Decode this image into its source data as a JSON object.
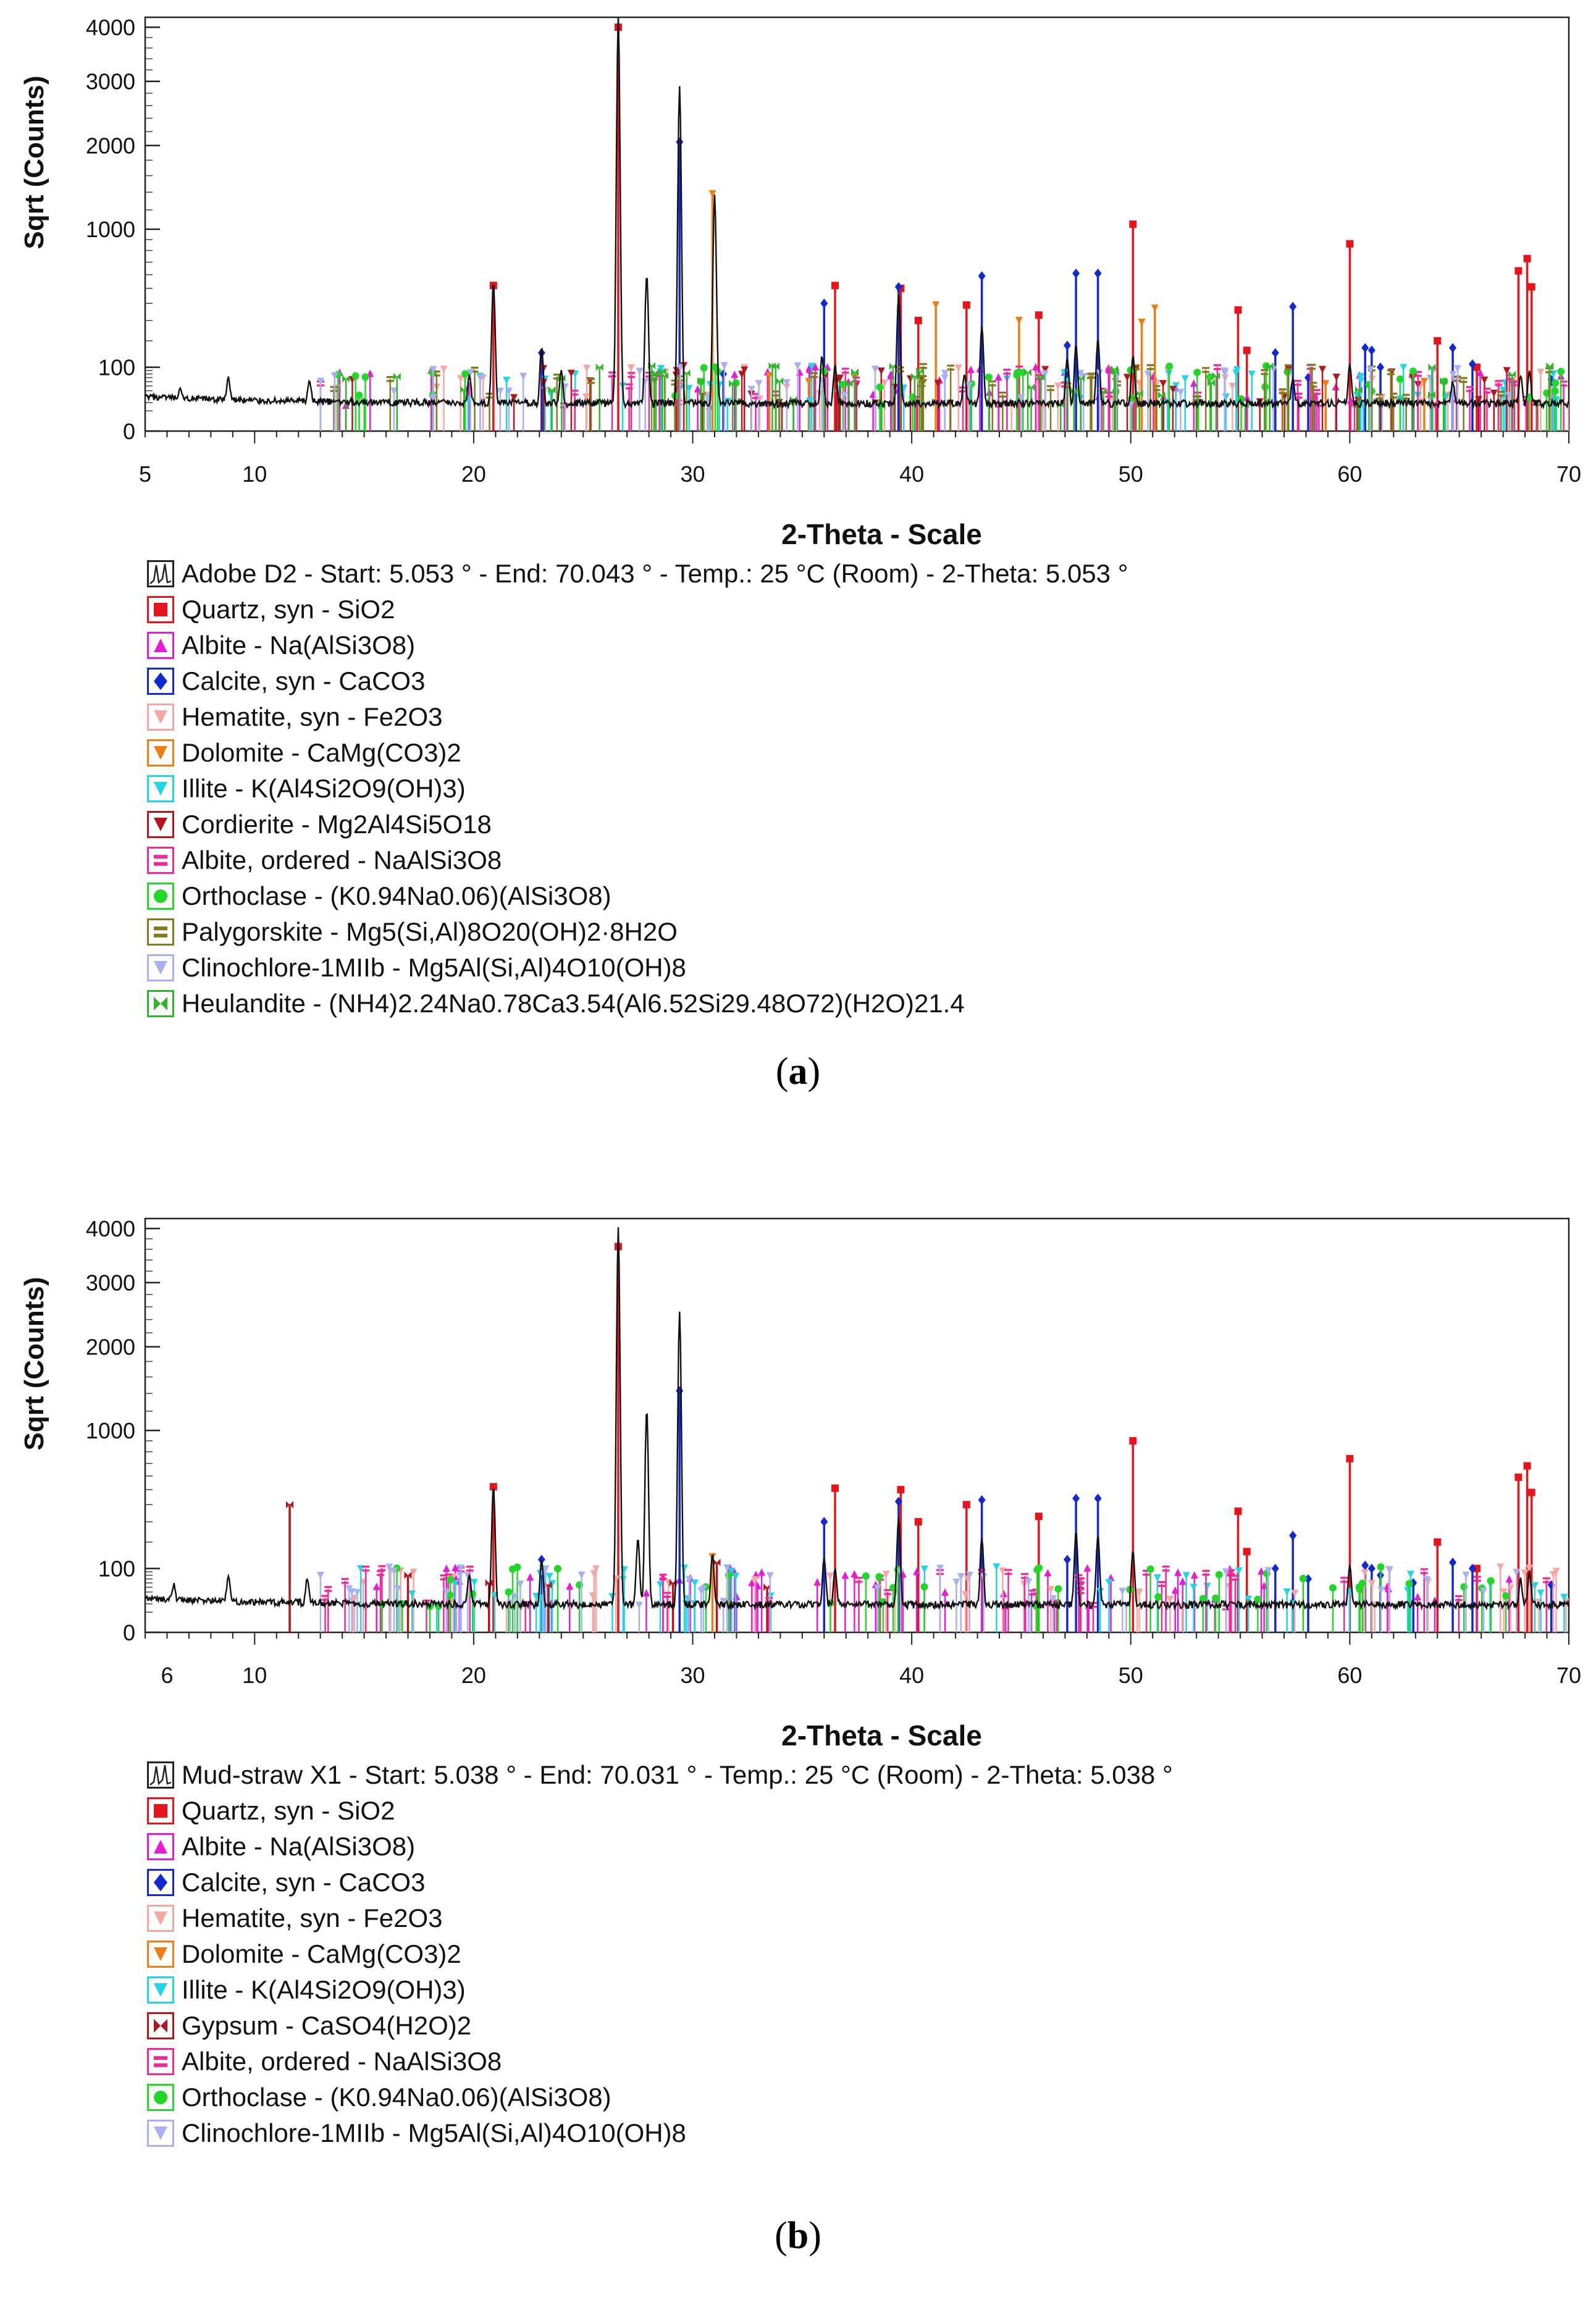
{
  "chart_data": [
    {
      "id": "a",
      "type": "line",
      "caption": "a",
      "xlabel": "2-Theta - Scale",
      "ylabel": "Sqrt (Counts)",
      "xlim": [
        5,
        70
      ],
      "x_ticks": [
        5,
        10,
        20,
        30,
        40,
        50,
        60,
        70
      ],
      "ylim": [
        0,
        4200
      ],
      "y_ticks": [
        0,
        100,
        1000,
        2000,
        3000,
        4000
      ],
      "y_scale": "sqrt",
      "pattern_name": "Adobe D2 - Start: 5.053 ° - End: 70.043 ° - Temp.: 25 °C (Room) - 2-Theta: 5.053 °",
      "peaks": [
        {
          "x": 6.6,
          "y": 14
        },
        {
          "x": 8.8,
          "y": 48
        },
        {
          "x": 12.5,
          "y": 42
        },
        {
          "x": 19.8,
          "y": 55
        },
        {
          "x": 20.9,
          "y": 520
        },
        {
          "x": 23.1,
          "y": 150
        },
        {
          "x": 24.0,
          "y": 70
        },
        {
          "x": 26.6,
          "y": 4200
        },
        {
          "x": 27.9,
          "y": 580
        },
        {
          "x": 29.4,
          "y": 2900
        },
        {
          "x": 31.0,
          "y": 1350
        },
        {
          "x": 35.9,
          "y": 120
        },
        {
          "x": 36.5,
          "y": 90
        },
        {
          "x": 39.4,
          "y": 430
        },
        {
          "x": 42.4,
          "y": 60
        },
        {
          "x": 43.2,
          "y": 250
        },
        {
          "x": 47.1,
          "y": 110
        },
        {
          "x": 47.5,
          "y": 160
        },
        {
          "x": 48.5,
          "y": 190
        },
        {
          "x": 50.1,
          "y": 120
        },
        {
          "x": 57.4,
          "y": 50
        },
        {
          "x": 60.0,
          "y": 90
        },
        {
          "x": 64.7,
          "y": 40
        },
        {
          "x": 67.8,
          "y": 55
        },
        {
          "x": 68.2,
          "y": 70
        }
      ],
      "phases": [
        {
          "name": "Quartz, syn - SiO2",
          "color": "#e8141c",
          "symbol": "square",
          "peaks": [
            {
              "x": 20.9,
              "y": 520
            },
            {
              "x": 26.6,
              "y": 4000
            },
            {
              "x": 36.5,
              "y": 520
            },
            {
              "x": 39.5,
              "y": 500
            },
            {
              "x": 40.3,
              "y": 300
            },
            {
              "x": 42.5,
              "y": 390
            },
            {
              "x": 45.8,
              "y": 330
            },
            {
              "x": 50.1,
              "y": 1050
            },
            {
              "x": 54.9,
              "y": 360
            },
            {
              "x": 55.3,
              "y": 160
            },
            {
              "x": 60.0,
              "y": 860
            },
            {
              "x": 64.0,
              "y": 200
            },
            {
              "x": 65.8,
              "y": 100
            },
            {
              "x": 67.7,
              "y": 630
            },
            {
              "x": 68.1,
              "y": 730
            },
            {
              "x": 68.3,
              "y": 510
            }
          ]
        },
        {
          "name": "Albite - Na(AlSi3O8)",
          "color": "#e61bd4",
          "symbol": "triangle-up",
          "peaks": []
        },
        {
          "name": "Calcite, syn - CaCO3",
          "color": "#1229d0",
          "symbol": "diamond",
          "peaks": [
            {
              "x": 23.1,
              "y": 150
            },
            {
              "x": 29.4,
              "y": 2050
            },
            {
              "x": 31.4,
              "y": 80
            },
            {
              "x": 36.0,
              "y": 400
            },
            {
              "x": 39.4,
              "y": 510
            },
            {
              "x": 43.2,
              "y": 590
            },
            {
              "x": 47.1,
              "y": 180
            },
            {
              "x": 47.5,
              "y": 610
            },
            {
              "x": 48.5,
              "y": 610
            },
            {
              "x": 56.6,
              "y": 150
            },
            {
              "x": 57.4,
              "y": 380
            },
            {
              "x": 58.1,
              "y": 70
            },
            {
              "x": 60.7,
              "y": 170
            },
            {
              "x": 61.0,
              "y": 160
            },
            {
              "x": 61.4,
              "y": 100
            },
            {
              "x": 62.9,
              "y": 80
            },
            {
              "x": 64.7,
              "y": 170
            },
            {
              "x": 65.6,
              "y": 110
            },
            {
              "x": 69.2,
              "y": 65
            }
          ]
        },
        {
          "name": "Hematite, syn - Fe2O3",
          "color": "#f7a7a3",
          "symbol": "triangle-down",
          "peaks": []
        },
        {
          "name": "Dolomite - CaMg(CO3)2",
          "color": "#f07d12",
          "symbol": "triangle-down",
          "peaks": [
            {
              "x": 30.9,
              "y": 1380
            },
            {
              "x": 33.5,
              "y": 75
            },
            {
              "x": 35.3,
              "y": 60
            },
            {
              "x": 37.4,
              "y": 70
            },
            {
              "x": 41.1,
              "y": 390
            },
            {
              "x": 44.9,
              "y": 300
            },
            {
              "x": 49.3,
              "y": 60
            },
            {
              "x": 50.5,
              "y": 290
            },
            {
              "x": 51.1,
              "y": 370
            },
            {
              "x": 58.9,
              "y": 55
            },
            {
              "x": 63.4,
              "y": 60
            },
            {
              "x": 67.4,
              "y": 60
            }
          ]
        },
        {
          "name": "Illite - K(Al4Si2O9(OH)3)",
          "color": "#20d5e6",
          "symbol": "triangle-down",
          "peaks": []
        },
        {
          "name": "Cordierite - Mg2Al4Si5O18",
          "color": "#b5161c",
          "symbol": "triangle-down",
          "peaks": []
        },
        {
          "name": "Albite, ordered - NaAlSi3O8",
          "color": "#f0289a",
          "symbol": "equals",
          "peaks": []
        },
        {
          "name": "Orthoclase - (K0.94Na0.06)(AlSi3O8)",
          "color": "#22d62a",
          "symbol": "circle",
          "peaks": []
        },
        {
          "name": "Palygorskite - Mg5(Si,Al)8O20(OH)2·8H2O",
          "color": "#827a1c",
          "symbol": "equals",
          "peaks": []
        },
        {
          "name": "Clinochlore-1MIIb - Mg5Al(Si,Al)4O10(OH)8",
          "color": "#a9b0f2",
          "symbol": "triangle-down",
          "peaks": []
        },
        {
          "name": "Heulandite - (NH4)2.24Na0.78Ca3.54(Al6.52Si29.48O72)(H2O)21.4",
          "color": "#2fb52a",
          "symbol": "bowtie",
          "peaks": []
        }
      ]
    },
    {
      "id": "b",
      "type": "line",
      "caption": "b",
      "xlabel": "2-Theta - Scale",
      "ylabel": "Sqrt (Counts)",
      "xlim": [
        5,
        70
      ],
      "x_ticks": [
        6,
        10,
        20,
        30,
        40,
        50,
        60,
        70
      ],
      "ylim": [
        0,
        4200
      ],
      "y_ticks": [
        0,
        100,
        1000,
        2000,
        3000,
        4000
      ],
      "y_scale": "sqrt",
      "pattern_name": "Mud-straw X1 - Start: 5.038 ° - End: 70.031 ° - Temp.: 25 °C (Room) - 2-Theta: 5.038 °",
      "peaks": [
        {
          "x": 6.3,
          "y": 30
        },
        {
          "x": 8.8,
          "y": 55
        },
        {
          "x": 12.4,
          "y": 48
        },
        {
          "x": 19.8,
          "y": 60
        },
        {
          "x": 20.9,
          "y": 500
        },
        {
          "x": 23.1,
          "y": 110
        },
        {
          "x": 26.6,
          "y": 4000
        },
        {
          "x": 27.5,
          "y": 200
        },
        {
          "x": 27.9,
          "y": 1200
        },
        {
          "x": 29.4,
          "y": 2500
        },
        {
          "x": 30.9,
          "y": 130
        },
        {
          "x": 36.0,
          "y": 120
        },
        {
          "x": 36.5,
          "y": 80
        },
        {
          "x": 39.4,
          "y": 300
        },
        {
          "x": 43.2,
          "y": 200
        },
        {
          "x": 47.5,
          "y": 230
        },
        {
          "x": 48.5,
          "y": 210
        },
        {
          "x": 50.1,
          "y": 140
        },
        {
          "x": 60.0,
          "y": 90
        },
        {
          "x": 67.8,
          "y": 50
        },
        {
          "x": 68.2,
          "y": 70
        }
      ],
      "phases": [
        {
          "name": "Quartz, syn - SiO2",
          "color": "#e8141c",
          "symbol": "square",
          "peaks": [
            {
              "x": 20.9,
              "y": 520
            },
            {
              "x": 26.6,
              "y": 3650
            },
            {
              "x": 36.5,
              "y": 510
            },
            {
              "x": 39.5,
              "y": 500
            },
            {
              "x": 40.3,
              "y": 300
            },
            {
              "x": 42.5,
              "y": 400
            },
            {
              "x": 45.8,
              "y": 330
            },
            {
              "x": 50.1,
              "y": 900
            },
            {
              "x": 54.9,
              "y": 360
            },
            {
              "x": 55.3,
              "y": 160
            },
            {
              "x": 60.0,
              "y": 740
            },
            {
              "x": 64.0,
              "y": 200
            },
            {
              "x": 65.8,
              "y": 100
            },
            {
              "x": 67.7,
              "y": 590
            },
            {
              "x": 68.1,
              "y": 680
            },
            {
              "x": 68.3,
              "y": 480
            }
          ]
        },
        {
          "name": "Albite - Na(AlSi3O8)",
          "color": "#e61bd4",
          "symbol": "triangle-up",
          "peaks": []
        },
        {
          "name": "Calcite, syn - CaCO3",
          "color": "#1229d0",
          "symbol": "diamond",
          "peaks": [
            {
              "x": 23.1,
              "y": 130
            },
            {
              "x": 29.4,
              "y": 1430
            },
            {
              "x": 36.0,
              "y": 300
            },
            {
              "x": 39.4,
              "y": 420
            },
            {
              "x": 43.2,
              "y": 430
            },
            {
              "x": 47.1,
              "y": 130
            },
            {
              "x": 47.5,
              "y": 440
            },
            {
              "x": 48.5,
              "y": 440
            },
            {
              "x": 56.6,
              "y": 100
            },
            {
              "x": 57.4,
              "y": 230
            },
            {
              "x": 58.1,
              "y": 70
            },
            {
              "x": 60.7,
              "y": 110
            },
            {
              "x": 61.0,
              "y": 100
            },
            {
              "x": 61.4,
              "y": 80
            },
            {
              "x": 62.9,
              "y": 60
            },
            {
              "x": 64.7,
              "y": 120
            },
            {
              "x": 65.6,
              "y": 100
            },
            {
              "x": 69.2,
              "y": 55
            }
          ]
        },
        {
          "name": "Hematite, syn - Fe2O3",
          "color": "#f7a7a3",
          "symbol": "triangle-down",
          "peaks": []
        },
        {
          "name": "Dolomite - CaMg(CO3)2",
          "color": "#f07d12",
          "symbol": "triangle-down",
          "peaks": [
            {
              "x": 30.9,
              "y": 140
            }
          ]
        },
        {
          "name": "Illite - K(Al4Si2O9(OH)3)",
          "color": "#20d5e6",
          "symbol": "triangle-down",
          "peaks": []
        },
        {
          "name": "Gypsum - CaSO4(H2O)2",
          "color": "#b5161c",
          "symbol": "bowtie",
          "peaks": [
            {
              "x": 11.6,
              "y": 400
            },
            {
              "x": 17.0,
              "y": 80
            },
            {
              "x": 20.7,
              "y": 60
            },
            {
              "x": 23.4,
              "y": 55
            },
            {
              "x": 29.1,
              "y": 60
            },
            {
              "x": 31.1,
              "y": 120
            },
            {
              "x": 33.4,
              "y": 50
            }
          ]
        },
        {
          "name": "Albite, ordered - NaAlSi3O8",
          "color": "#f0289a",
          "symbol": "equals",
          "peaks": []
        },
        {
          "name": "Orthoclase - (K0.94Na0.06)(AlSi3O8)",
          "color": "#22d62a",
          "symbol": "circle",
          "peaks": []
        },
        {
          "name": "Clinochlore-1MIIb - Mg5Al(Si,Al)4O10(OH)8",
          "color": "#a9b0f2",
          "symbol": "triangle-down",
          "peaks": []
        }
      ]
    }
  ]
}
